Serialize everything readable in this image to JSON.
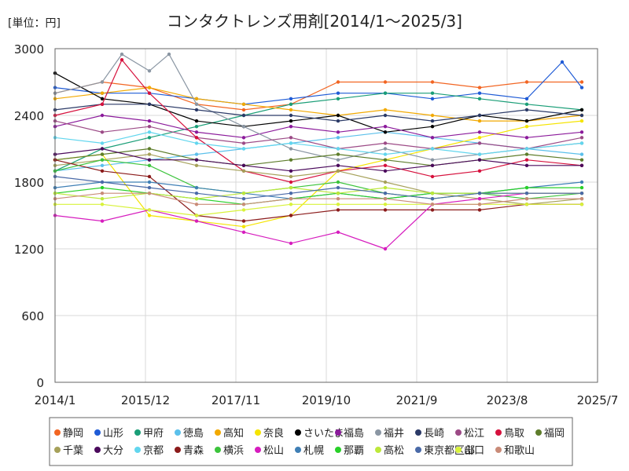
{
  "chart_data": {
    "type": "line",
    "title": "コンタクトレンズ用剤[2014/1～2025/3]",
    "unit_label": "[単位：円]",
    "xlabel": "",
    "ylabel": "",
    "ylim": [
      0,
      3000
    ],
    "yticks": [
      0,
      600,
      1200,
      1800,
      2400,
      3000
    ],
    "xlim": [
      "2014-01",
      "2025-07"
    ],
    "xticks": [
      "2014/1",
      "2015/12",
      "2017/11",
      "2019/10",
      "2021/9",
      "2023/8",
      "2025/7"
    ],
    "grid": true,
    "legend_position": "bottom",
    "marker": "circle",
    "series": [
      {
        "name": "静岡",
        "color": "#f26522",
        "x": [
          "2014-01",
          "2015-01",
          "2016-01",
          "2017-01",
          "2018-01",
          "2019-01",
          "2020-01",
          "2021-01",
          "2022-01",
          "2023-01",
          "2024-01",
          "2025-03"
        ],
        "values": [
          2600,
          2700,
          2650,
          2500,
          2450,
          2500,
          2700,
          2700,
          2700,
          2650,
          2700,
          2700
        ]
      },
      {
        "name": "山形",
        "color": "#1f5bd6",
        "x": [
          "2014-01",
          "2015-01",
          "2016-01",
          "2017-01",
          "2018-01",
          "2019-01",
          "2020-01",
          "2021-01",
          "2022-01",
          "2023-01",
          "2024-01",
          "2024-10",
          "2025-03"
        ],
        "values": [
          2650,
          2600,
          2600,
          2550,
          2500,
          2550,
          2600,
          2600,
          2550,
          2600,
          2550,
          2880,
          2650
        ]
      },
      {
        "name": "甲府",
        "color": "#1a9e77",
        "x": [
          "2014-01",
          "2015-01",
          "2016-01",
          "2017-01",
          "2018-01",
          "2019-01",
          "2020-01",
          "2021-01",
          "2022-01",
          "2023-01",
          "2024-01",
          "2025-03"
        ],
        "values": [
          1900,
          2100,
          2200,
          2300,
          2400,
          2500,
          2550,
          2600,
          2600,
          2550,
          2500,
          2450
        ]
      },
      {
        "name": "徳島",
        "color": "#5bc0eb",
        "x": [
          "2014-01",
          "2015-01",
          "2016-01",
          "2017-01",
          "2018-01",
          "2019-01",
          "2020-01",
          "2021-01",
          "2022-01",
          "2023-01",
          "2024-01",
          "2025-03"
        ],
        "values": [
          1900,
          1950,
          2000,
          2050,
          2100,
          2150,
          2200,
          2250,
          2200,
          2150,
          2100,
          2050
        ]
      },
      {
        "name": "高知",
        "color": "#f2a900",
        "x": [
          "2014-01",
          "2015-01",
          "2016-01",
          "2017-01",
          "2018-01",
          "2019-01",
          "2020-01",
          "2021-01",
          "2022-01",
          "2023-01",
          "2024-01",
          "2025-03"
        ],
        "values": [
          2550,
          2600,
          2650,
          2550,
          2500,
          2450,
          2400,
          2450,
          2400,
          2350,
          2350,
          2400
        ]
      },
      {
        "name": "奈良",
        "color": "#f5e400",
        "x": [
          "2014-01",
          "2015-01",
          "2016-01",
          "2017-01",
          "2018-01",
          "2019-01",
          "2020-01",
          "2021-01",
          "2022-01",
          "2023-01",
          "2024-01",
          "2025-03"
        ],
        "values": [
          2000,
          2050,
          1500,
          1450,
          1400,
          1500,
          1900,
          2000,
          2100,
          2200,
          2300,
          2350
        ]
      },
      {
        "name": "さいたま",
        "color": "#000000",
        "x": [
          "2014-01",
          "2015-01",
          "2016-01",
          "2017-01",
          "2018-01",
          "2019-01",
          "2020-01",
          "2021-01",
          "2022-01",
          "2023-01",
          "2024-01",
          "2025-03"
        ],
        "values": [
          2780,
          2550,
          2500,
          2350,
          2300,
          2350,
          2400,
          2250,
          2300,
          2400,
          2350,
          2450
        ]
      },
      {
        "name": "福島",
        "color": "#8b1a9b",
        "x": [
          "2014-01",
          "2015-01",
          "2016-01",
          "2017-01",
          "2018-01",
          "2019-01",
          "2020-01",
          "2021-01",
          "2022-01",
          "2023-01",
          "2024-01",
          "2025-03"
        ],
        "values": [
          2300,
          2400,
          2350,
          2250,
          2200,
          2300,
          2250,
          2300,
          2200,
          2250,
          2200,
          2250
        ]
      },
      {
        "name": "福井",
        "color": "#8a96a3",
        "x": [
          "2014-01",
          "2015-01",
          "2015-06",
          "2016-01",
          "2016-06",
          "2017-01",
          "2018-01",
          "2019-01",
          "2020-01",
          "2021-01",
          "2022-01",
          "2023-01",
          "2024-01",
          "2025-03"
        ],
        "values": [
          2600,
          2700,
          2950,
          2800,
          2950,
          2500,
          2300,
          2100,
          2000,
          2100,
          2000,
          2050,
          2100,
          2150
        ]
      },
      {
        "name": "長崎",
        "color": "#2b3a67",
        "x": [
          "2014-01",
          "2015-01",
          "2016-01",
          "2017-01",
          "2018-01",
          "2019-01",
          "2020-01",
          "2021-01",
          "2022-01",
          "2023-01",
          "2024-01",
          "2025-03"
        ],
        "values": [
          2450,
          2500,
          2500,
          2450,
          2400,
          2400,
          2350,
          2400,
          2350,
          2400,
          2450,
          2400
        ]
      },
      {
        "name": "松江",
        "color": "#9c4a86",
        "x": [
          "2014-01",
          "2015-01",
          "2016-01",
          "2017-01",
          "2018-01",
          "2019-01",
          "2020-01",
          "2021-01",
          "2022-01",
          "2023-01",
          "2024-01",
          "2025-03"
        ],
        "values": [
          2350,
          2250,
          2300,
          2200,
          2150,
          2200,
          2100,
          2150,
          2100,
          2150,
          2100,
          2200
        ]
      },
      {
        "name": "鳥取",
        "color": "#d6113d",
        "x": [
          "2014-01",
          "2015-01",
          "2015-06",
          "2016-01",
          "2017-01",
          "2018-01",
          "2019-01",
          "2020-01",
          "2021-01",
          "2022-01",
          "2023-01",
          "2024-01",
          "2025-03"
        ],
        "values": [
          2400,
          2500,
          2900,
          2600,
          2200,
          1900,
          1800,
          1900,
          1950,
          1850,
          1900,
          2000,
          1950
        ]
      },
      {
        "name": "福岡",
        "color": "#5e7d2b",
        "x": [
          "2014-01",
          "2015-01",
          "2016-01",
          "2017-01",
          "2018-01",
          "2019-01",
          "2020-01",
          "2021-01",
          "2022-01",
          "2023-01",
          "2024-01",
          "2025-03"
        ],
        "values": [
          2000,
          2050,
          2100,
          2000,
          1950,
          2000,
          2050,
          2000,
          1950,
          2000,
          2050,
          2000
        ]
      },
      {
        "name": "千葉",
        "color": "#a6a15a",
        "x": [
          "2014-01",
          "2015-01",
          "2016-01",
          "2017-01",
          "2018-01",
          "2019-01",
          "2020-01",
          "2021-01",
          "2022-01",
          "2023-01",
          "2024-01",
          "2025-03"
        ],
        "values": [
          1950,
          2000,
          2050,
          1950,
          1900,
          1850,
          1900,
          1800,
          1700,
          1650,
          1600,
          1650
        ]
      },
      {
        "name": "大分",
        "color": "#4b0a5c",
        "x": [
          "2014-01",
          "2015-01",
          "2016-01",
          "2017-01",
          "2018-01",
          "2019-01",
          "2020-01",
          "2021-01",
          "2022-01",
          "2023-01",
          "2024-01",
          "2025-03"
        ],
        "values": [
          2050,
          2100,
          2000,
          2000,
          1950,
          1900,
          1950,
          1900,
          1950,
          2000,
          1950,
          1950
        ]
      },
      {
        "name": "京都",
        "color": "#62d6ee",
        "x": [
          "2014-01",
          "2015-01",
          "2016-01",
          "2017-01",
          "2018-01",
          "2019-01",
          "2020-01",
          "2021-01",
          "2022-01",
          "2023-01",
          "2024-01",
          "2025-03"
        ],
        "values": [
          2200,
          2150,
          2250,
          2150,
          2100,
          2150,
          2100,
          2050,
          2100,
          2050,
          2100,
          2150
        ]
      },
      {
        "name": "青森",
        "color": "#8b1b1b",
        "x": [
          "2014-01",
          "2015-01",
          "2016-01",
          "2017-01",
          "2018-01",
          "2019-01",
          "2020-01",
          "2021-01",
          "2022-01",
          "2023-01",
          "2024-01",
          "2025-03"
        ],
        "values": [
          2000,
          1900,
          1850,
          1500,
          1450,
          1500,
          1550,
          1550,
          1550,
          1550,
          1600,
          1600
        ]
      },
      {
        "name": "横浜",
        "color": "#3cc43c",
        "x": [
          "2014-01",
          "2015-01",
          "2016-01",
          "2017-01",
          "2018-01",
          "2019-01",
          "2020-01",
          "2021-01",
          "2022-01",
          "2023-01",
          "2024-01",
          "2025-03"
        ],
        "values": [
          1900,
          2000,
          1950,
          1750,
          1700,
          1750,
          1800,
          1700,
          1650,
          1700,
          1650,
          1700
        ]
      },
      {
        "name": "松山",
        "color": "#d61cbe",
        "x": [
          "2014-01",
          "2015-01",
          "2016-01",
          "2017-01",
          "2018-01",
          "2019-01",
          "2020-01",
          "2021-01",
          "2022-01",
          "2023-01",
          "2024-01",
          "2025-03"
        ],
        "values": [
          1500,
          1450,
          1550,
          1450,
          1350,
          1250,
          1350,
          1200,
          1600,
          1650,
          1700,
          1700
        ]
      },
      {
        "name": "札幌",
        "color": "#3f7fb5",
        "x": [
          "2014-01",
          "2015-01",
          "2016-01",
          "2017-01",
          "2018-01",
          "2019-01",
          "2020-01",
          "2021-01",
          "2022-01",
          "2023-01",
          "2024-01",
          "2025-03"
        ],
        "values": [
          1750,
          1800,
          1800,
          1750,
          1700,
          1650,
          1700,
          1650,
          1700,
          1700,
          1750,
          1800
        ]
      },
      {
        "name": "那覇",
        "color": "#28d028",
        "x": [
          "2014-01",
          "2015-01",
          "2016-01",
          "2017-01",
          "2018-01",
          "2019-01",
          "2020-01",
          "2021-01",
          "2022-01",
          "2023-01",
          "2024-01",
          "2025-03"
        ],
        "values": [
          1700,
          1750,
          1700,
          1650,
          1600,
          1650,
          1700,
          1650,
          1700,
          1700,
          1750,
          1750
        ]
      },
      {
        "name": "高松",
        "color": "#bde83a",
        "x": [
          "2014-01",
          "2015-01",
          "2016-01",
          "2017-01",
          "2018-01",
          "2019-01",
          "2020-01",
          "2021-01",
          "2022-01",
          "2023-01",
          "2024-01",
          "2025-03"
        ],
        "values": [
          1700,
          1650,
          1700,
          1650,
          1700,
          1750,
          1700,
          1750,
          1700,
          1700,
          1700,
          1700
        ]
      },
      {
        "name": "東京都区部",
        "color": "#4a6aa8",
        "x": [
          "2014-01",
          "2015-01",
          "2016-01",
          "2017-01",
          "2018-01",
          "2019-01",
          "2020-01",
          "2021-01",
          "2022-01",
          "2023-01",
          "2024-01",
          "2025-03"
        ],
        "values": [
          1850,
          1800,
          1750,
          1700,
          1650,
          1700,
          1750,
          1700,
          1650,
          1700,
          1700,
          1700
        ]
      },
      {
        "name": "山口",
        "color": "#d8f23a",
        "x": [
          "2014-01",
          "2015-01",
          "2016-01",
          "2017-01",
          "2018-01",
          "2019-01",
          "2020-01",
          "2021-01",
          "2022-01",
          "2023-01",
          "2024-01",
          "2025-03"
        ],
        "values": [
          1600,
          1600,
          1550,
          1500,
          1550,
          1600,
          1600,
          1600,
          1600,
          1600,
          1600,
          1600
        ]
      },
      {
        "name": "和歌山",
        "color": "#c98b78",
        "x": [
          "2014-01",
          "2015-01",
          "2016-01",
          "2017-01",
          "2018-01",
          "2019-01",
          "2020-01",
          "2021-01",
          "2022-01",
          "2023-01",
          "2024-01",
          "2025-03"
        ],
        "values": [
          1650,
          1700,
          1700,
          1600,
          1600,
          1650,
          1650,
          1650,
          1600,
          1600,
          1650,
          1650
        ]
      }
    ]
  }
}
